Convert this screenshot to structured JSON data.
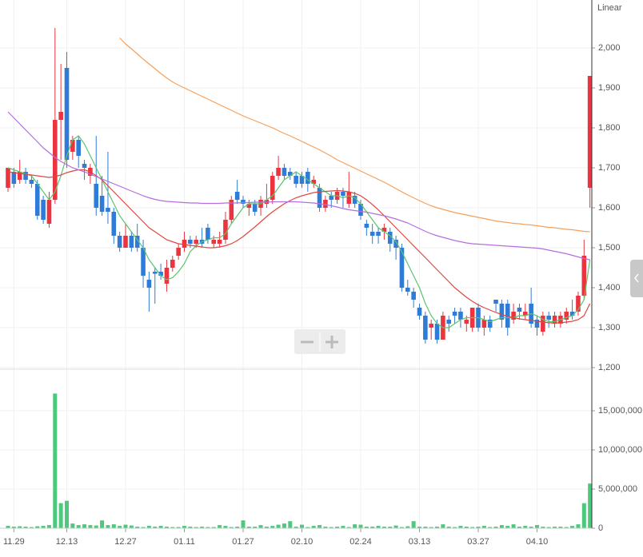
{
  "chart_data": [
    {
      "type": "candlestick",
      "scale_label": "Linear",
      "categories": [
        null,
        "11.29",
        null,
        null,
        null,
        null,
        null,
        null,
        null,
        null,
        "12.13",
        null,
        null,
        null,
        null,
        null,
        null,
        null,
        null,
        null,
        "12.27",
        null,
        null,
        null,
        null,
        null,
        null,
        null,
        null,
        null,
        "01.11",
        null,
        null,
        null,
        null,
        null,
        null,
        null,
        null,
        null,
        "01.27",
        null,
        null,
        null,
        null,
        null,
        null,
        null,
        null,
        null,
        "02.10",
        null,
        null,
        null,
        null,
        null,
        null,
        null,
        null,
        null,
        "02.24",
        null,
        null,
        null,
        null,
        null,
        null,
        null,
        null,
        null,
        "03.13",
        null,
        null,
        null,
        null,
        null,
        null,
        null,
        null,
        null,
        "03.27",
        null,
        null,
        null,
        null,
        null,
        null,
        null,
        null,
        null,
        "04.10",
        null,
        null,
        null,
        null,
        null,
        null,
        null,
        null,
        null
      ],
      "open": [
        1650,
        1690,
        1670,
        1690,
        1670,
        1660,
        1620,
        1560,
        1620,
        1820,
        1950,
        1740,
        1770,
        1710,
        1680,
        1660,
        1630,
        1600,
        1590,
        1530,
        1500,
        1530,
        1530,
        1500,
        1420,
        1440,
        1440,
        1410,
        1450,
        1480,
        1500,
        1520,
        1510,
        1520,
        1550,
        1510,
        1510,
        1520,
        1570,
        1640,
        1620,
        1600,
        1610,
        1600,
        1610,
        1620,
        1680,
        1700,
        1690,
        1680,
        1680,
        1690,
        1660,
        1650,
        1600,
        1630,
        1620,
        1640,
        1610,
        1630,
        1610,
        1560,
        1540,
        1540,
        1540,
        1540,
        1520,
        1500,
        1400,
        1390,
        1350,
        1330,
        1300,
        1310,
        1270,
        1320,
        1340,
        1340,
        1310,
        1300,
        1350,
        1300,
        1320,
        1370,
        1360,
        1360,
        1320,
        1350,
        1330,
        1360,
        1320,
        1290,
        1330,
        1310,
        1310,
        1320,
        1340,
        1340,
        1380,
        1650
      ],
      "high": [
        1700,
        1700,
        1720,
        1700,
        1680,
        1670,
        1630,
        1640,
        2050,
        1960,
        1990,
        1780,
        1780,
        1720,
        1710,
        1780,
        1680,
        1740,
        1600,
        1540,
        1560,
        1540,
        1560,
        1520,
        1440,
        1450,
        1460,
        1470,
        1480,
        1510,
        1540,
        1530,
        1530,
        1550,
        1560,
        1530,
        1540,
        1590,
        1630,
        1670,
        1630,
        1620,
        1620,
        1630,
        1660,
        1690,
        1730,
        1710,
        1700,
        1690,
        1690,
        1700,
        1680,
        1660,
        1630,
        1640,
        1650,
        1650,
        1690,
        1640,
        1620,
        1570,
        1560,
        1550,
        1560,
        1550,
        1530,
        1510,
        1420,
        1400,
        1360,
        1340,
        1320,
        1320,
        1340,
        1330,
        1350,
        1350,
        1330,
        1350,
        1360,
        1330,
        1330,
        1370,
        1370,
        1370,
        1360,
        1360,
        1360,
        1400,
        1330,
        1340,
        1340,
        1340,
        1340,
        1350,
        1370,
        1390,
        1520,
        1930
      ],
      "low": [
        1640,
        1650,
        1660,
        1660,
        1650,
        1570,
        1560,
        1550,
        1610,
        1720,
        1700,
        1720,
        1700,
        1670,
        1660,
        1580,
        1580,
        1560,
        1510,
        1490,
        1500,
        1490,
        1490,
        1400,
        1340,
        1360,
        1420,
        1390,
        1440,
        1470,
        1490,
        1500,
        1500,
        1500,
        1510,
        1500,
        1500,
        1510,
        1560,
        1610,
        1600,
        1580,
        1580,
        1580,
        1600,
        1610,
        1670,
        1670,
        1670,
        1650,
        1650,
        1640,
        1650,
        1590,
        1590,
        1600,
        1610,
        1600,
        1600,
        1600,
        1570,
        1530,
        1510,
        1510,
        1520,
        1490,
        1470,
        1390,
        1380,
        1350,
        1320,
        1260,
        1270,
        1260,
        1270,
        1290,
        1310,
        1300,
        1290,
        1290,
        1290,
        1280,
        1290,
        1340,
        1300,
        1280,
        1310,
        1320,
        1320,
        1300,
        1280,
        1280,
        1300,
        1300,
        1300,
        1310,
        1320,
        1330,
        1370,
        1600
      ],
      "close": [
        1700,
        1660,
        1690,
        1670,
        1660,
        1580,
        1570,
        1620,
        1820,
        1840,
        1720,
        1770,
        1730,
        1700,
        1700,
        1600,
        1590,
        1590,
        1530,
        1500,
        1530,
        1500,
        1500,
        1430,
        1400,
        1435,
        1430,
        1450,
        1470,
        1500,
        1520,
        1510,
        1520,
        1510,
        1520,
        1520,
        1520,
        1570,
        1620,
        1620,
        1610,
        1610,
        1590,
        1620,
        1620,
        1680,
        1700,
        1680,
        1680,
        1660,
        1660,
        1660,
        1670,
        1600,
        1620,
        1620,
        1640,
        1630,
        1640,
        1610,
        1580,
        1550,
        1530,
        1530,
        1550,
        1510,
        1500,
        1400,
        1390,
        1370,
        1330,
        1270,
        1310,
        1270,
        1330,
        1310,
        1330,
        1320,
        1320,
        1350,
        1300,
        1320,
        1300,
        1360,
        1320,
        1300,
        1340,
        1340,
        1340,
        1310,
        1300,
        1330,
        1320,
        1330,
        1330,
        1340,
        1330,
        1380,
        1480,
        1930
      ],
      "up_color": "#ea3540",
      "down_color": "#2f7bd8",
      "series": [
        {
          "color": "#5cc46e",
          "values": [
            1700,
            1695,
            1690,
            1685,
            1680,
            1660,
            1640,
            1620,
            1640,
            1680,
            1730,
            1770,
            1780,
            1760,
            1730,
            1700,
            1670,
            1640,
            1610,
            1580,
            1560,
            1540,
            1520,
            1500,
            1470,
            1450,
            1430,
            1420,
            1425,
            1440,
            1460,
            1490,
            1505,
            1515,
            1520,
            1525,
            1525,
            1535,
            1560,
            1580,
            1600,
            1610,
            1610,
            1610,
            1620,
            1630,
            1650,
            1670,
            1680,
            1690,
            1680,
            1670,
            1660,
            1650,
            1640,
            1630,
            1630,
            1625,
            1630,
            1625,
            1610,
            1590,
            1570,
            1550,
            1540,
            1530,
            1515,
            1490,
            1460,
            1430,
            1400,
            1360,
            1330,
            1310,
            1300,
            1300,
            1310,
            1320,
            1325,
            1325,
            1325,
            1320,
            1315,
            1320,
            1325,
            1325,
            1325,
            1330,
            1330,
            1335,
            1330,
            1320,
            1315,
            1315,
            1320,
            1325,
            1330,
            1345,
            1370,
            1470
          ]
        },
        {
          "color": "#e0473f",
          "values": [
            1690,
            1688,
            1686,
            1684,
            1682,
            1680,
            1678,
            1676,
            1678,
            1682,
            1688,
            1692,
            1695,
            1695,
            1690,
            1680,
            1670,
            1655,
            1640,
            1625,
            1610,
            1595,
            1580,
            1565,
            1550,
            1540,
            1530,
            1520,
            1515,
            1510,
            1508,
            1506,
            1504,
            1502,
            1500,
            1500,
            1502,
            1505,
            1510,
            1518,
            1528,
            1540,
            1552,
            1565,
            1578,
            1590,
            1600,
            1610,
            1618,
            1625,
            1630,
            1634,
            1638,
            1640,
            1641,
            1642,
            1643,
            1642,
            1640,
            1636,
            1630,
            1620,
            1608,
            1595,
            1580,
            1565,
            1550,
            1535,
            1520,
            1505,
            1490,
            1475,
            1460,
            1445,
            1430,
            1415,
            1400,
            1388,
            1376,
            1366,
            1357,
            1350,
            1344,
            1338,
            1333,
            1328,
            1325,
            1322,
            1320,
            1318,
            1316,
            1314,
            1312,
            1312,
            1312,
            1314,
            1316,
            1320,
            1330,
            1360
          ]
        },
        {
          "color": "#b36ee0",
          "values": [
            1840,
            1825,
            1810,
            1795,
            1780,
            1765,
            1750,
            1738,
            1726,
            1716,
            1708,
            1700,
            1695,
            1690,
            1684,
            1678,
            1672,
            1666,
            1660,
            1654,
            1648,
            1642,
            1636,
            1630,
            1625,
            1621,
            1618,
            1616,
            1615,
            1614,
            1613,
            1612,
            1612,
            1611,
            1611,
            1611,
            1611,
            1612,
            1612,
            1612,
            1613,
            1613,
            1614,
            1614,
            1614,
            1615,
            1615,
            1615,
            1615,
            1615,
            1614,
            1613,
            1612,
            1610,
            1608,
            1605,
            1602,
            1598,
            1595,
            1593,
            1591,
            1589,
            1586,
            1583,
            1580,
            1576,
            1572,
            1567,
            1562,
            1555,
            1548,
            1541,
            1535,
            1530,
            1526,
            1522,
            1518,
            1515,
            1512,
            1510,
            1509,
            1508,
            1507,
            1506,
            1505,
            1504,
            1503,
            1502,
            1501,
            1500,
            1499,
            1497,
            1494,
            1491,
            1488,
            1485,
            1481,
            1477,
            1473,
            1470
          ]
        },
        {
          "color": "#f5a05a",
          "values": [
            null,
            null,
            null,
            null,
            null,
            null,
            null,
            null,
            null,
            null,
            null,
            null,
            null,
            null,
            null,
            null,
            null,
            null,
            null,
            2025,
            2010,
            1998,
            1985,
            1972,
            1960,
            1948,
            1936,
            1925,
            1915,
            1907,
            1900,
            1893,
            1886,
            1879,
            1872,
            1865,
            1858,
            1851,
            1844,
            1837,
            1830,
            1824,
            1818,
            1812,
            1806,
            1800,
            1793,
            1786,
            1780,
            1773,
            1766,
            1759,
            1752,
            1745,
            1737,
            1729,
            1720,
            1713,
            1706,
            1699,
            1692,
            1685,
            1678,
            1671,
            1664,
            1656,
            1648,
            1640,
            1632,
            1625,
            1618,
            1611,
            1605,
            1600,
            1596,
            1592,
            1588,
            1585,
            1582,
            1579,
            1576,
            1573,
            1570,
            1567,
            1565,
            1563,
            1561,
            1560,
            1558,
            1557,
            1555,
            1553,
            1551,
            1550,
            1548,
            1546,
            1545,
            1543,
            1541,
            1540
          ]
        }
      ],
      "ylim": [
        1200,
        2100
      ],
      "yticks": [
        {
          "value": 1200,
          "label": "1,200"
        },
        {
          "value": 1300,
          "label": "1,300"
        },
        {
          "value": 1400,
          "label": "1,400"
        },
        {
          "value": 1500,
          "label": "1,500"
        },
        {
          "value": 1600,
          "label": "1,600"
        },
        {
          "value": 1700,
          "label": "1,700"
        },
        {
          "value": 1800,
          "label": "1,800"
        },
        {
          "value": 1900,
          "label": "1,900"
        },
        {
          "value": 2000,
          "label": "2,000"
        }
      ],
      "grid": true
    },
    {
      "type": "bar",
      "color": "#4cc97d",
      "values": [
        300000,
        200000,
        250000,
        200000,
        150000,
        250000,
        300000,
        400000,
        17200000,
        3200000,
        3500000,
        600000,
        400000,
        500000,
        400000,
        350000,
        1000000,
        400000,
        500000,
        300000,
        450000,
        350000,
        200000,
        150000,
        300000,
        200000,
        300000,
        200000,
        150000,
        150000,
        300000,
        200000,
        150000,
        200000,
        150000,
        150000,
        400000,
        300000,
        150000,
        200000,
        1000000,
        200000,
        200000,
        400000,
        200000,
        300000,
        450000,
        600000,
        900000,
        200000,
        450000,
        150000,
        300000,
        400000,
        200000,
        150000,
        200000,
        300000,
        150000,
        500000,
        450000,
        200000,
        200000,
        300000,
        200000,
        200000,
        350000,
        150000,
        250000,
        900000,
        200000,
        200000,
        150000,
        200000,
        500000,
        200000,
        150000,
        300000,
        200000,
        150000,
        200000,
        300000,
        150000,
        200000,
        400000,
        300000,
        500000,
        200000,
        300000,
        200000,
        400000,
        200000,
        150000,
        200000,
        200000,
        150000,
        300000,
        500000,
        3200000,
        5700000
      ],
      "ylim": [
        0,
        20000000
      ],
      "yticks": [
        0,
        {
          "value": 5000000,
          "label": "5,000,000"
        },
        {
          "value": 10000000,
          "label": "10,000,000"
        },
        {
          "value": 15000000,
          "label": "15,000,000"
        }
      ],
      "grid": true
    }
  ]
}
